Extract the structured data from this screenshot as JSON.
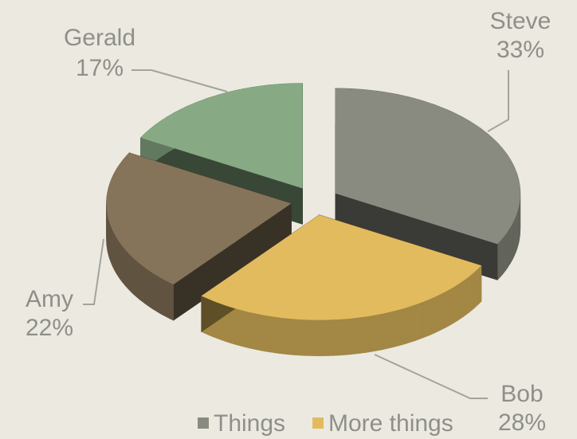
{
  "chart_data": {
    "type": "pie",
    "categories": [
      "Steve",
      "Bob",
      "Amy",
      "Gerald"
    ],
    "values": [
      33,
      28,
      22,
      17
    ],
    "value_labels": [
      "33%",
      "28%",
      "22%",
      "17%"
    ],
    "colors": [
      "#8a8b80",
      "#e2bb5e",
      "#85745a",
      "#87aa84"
    ],
    "legend": [
      {
        "name": "Things",
        "color": "#8a8b80"
      },
      {
        "name": "More things",
        "color": "#e2bb5e"
      }
    ]
  }
}
